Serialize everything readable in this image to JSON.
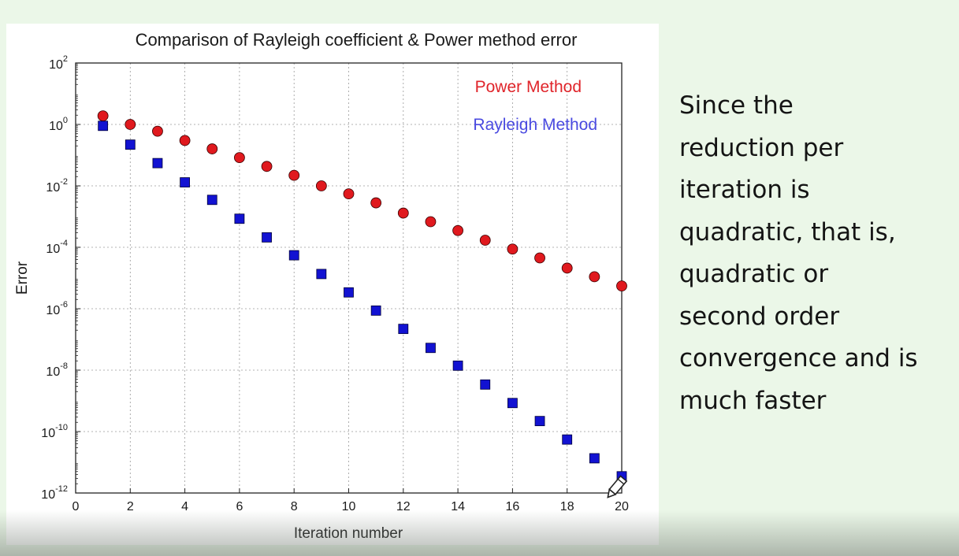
{
  "colors": {
    "background": "#ebf7e8",
    "power_series": "#e0191e",
    "rayleigh_series": "#1212d2",
    "legend_power": "#e0242a",
    "legend_rayleigh": "#4a4ae0"
  },
  "slide_text": {
    "lines": [
      "Since the",
      "reduction per",
      "iteration is",
      "quadratic, that is,",
      "quadratic or",
      "second order",
      "convergence and is",
      "much faster"
    ]
  },
  "cursor": {
    "icon": "pencil-cursor-icon"
  },
  "chart_data": {
    "type": "scatter",
    "title": "Comparison of Rayleigh coefficient & Power method error",
    "xlabel": "Iteration number",
    "ylabel": "Error",
    "xlim": [
      0,
      20
    ],
    "ylim": [
      1e-12,
      100
    ],
    "yscale": "log",
    "grid": true,
    "legend": "top-right",
    "x_ticks": [
      "0",
      "2",
      "4",
      "6",
      "8",
      "10",
      "12",
      "14",
      "16",
      "18",
      "20"
    ],
    "y_ticks": [
      {
        "base": "10",
        "exp": "2"
      },
      {
        "base": "10",
        "exp": "0"
      },
      {
        "base": "10",
        "exp": "-2"
      },
      {
        "base": "10",
        "exp": "-4"
      },
      {
        "base": "10",
        "exp": "-6"
      },
      {
        "base": "10",
        "exp": "-8"
      },
      {
        "base": "10",
        "exp": "-10"
      },
      {
        "base": "10",
        "exp": "-12"
      }
    ],
    "series": [
      {
        "name": "Power Method",
        "marker": "circle",
        "x": [
          1,
          2,
          3,
          4,
          5,
          6,
          7,
          8,
          9,
          10,
          11,
          12,
          13,
          14,
          15,
          16,
          17,
          18,
          19,
          20
        ],
        "y": [
          1.9,
          1.0,
          0.6,
          0.3,
          0.16,
          0.083,
          0.043,
          0.022,
          0.01,
          0.0055,
          0.0028,
          0.0013,
          0.00068,
          0.00035,
          0.00017,
          8.75e-05,
          4.5e-05,
          2.1e-05,
          1.1e-05,
          5.5e-06
        ]
      },
      {
        "name": "Rayleigh Method",
        "marker": "square",
        "x": [
          1,
          2,
          3,
          4,
          5,
          6,
          7,
          8,
          9,
          10,
          11,
          12,
          13,
          14,
          15,
          16,
          17,
          18,
          19,
          20
        ],
        "y": [
          0.9,
          0.22,
          0.055,
          0.013,
          0.0035,
          0.00085,
          0.00021,
          5.5e-05,
          1.35e-05,
          3.4e-06,
          8.7e-07,
          2.2e-07,
          5.3e-08,
          1.4e-08,
          3.4e-09,
          8.5e-10,
          2.2e-10,
          5.5e-11,
          1.35e-11,
          3.5e-12
        ]
      }
    ]
  }
}
